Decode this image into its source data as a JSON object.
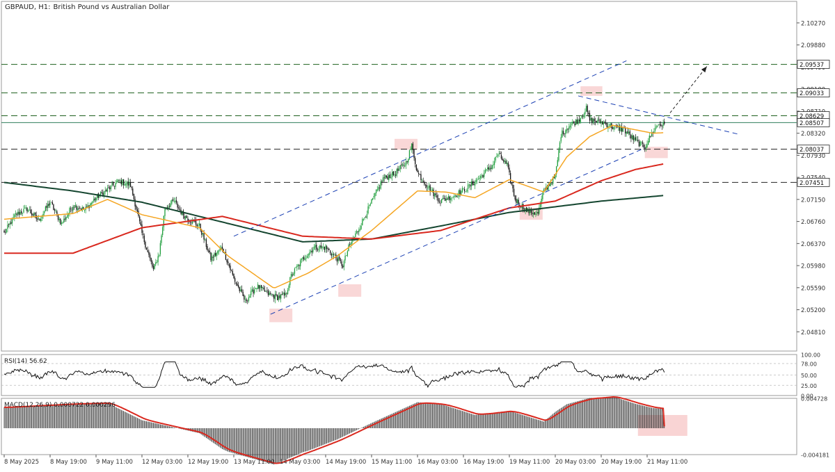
{
  "header": {
    "symbol": "GBPAUD, H1:",
    "description": "British Pound vs Australian Dollar"
  },
  "price_axis": {
    "ticks": [
      "2.10270",
      "2.09880",
      "2.09490",
      "2.09100",
      "2.08710",
      "2.08320",
      "2.07930",
      "2.07540",
      "2.07150",
      "2.06760",
      "2.06370",
      "2.05980",
      "2.05590",
      "2.05200",
      "2.04810"
    ],
    "range": [
      2.0447,
      2.1065
    ]
  },
  "price_levels": [
    {
      "label": "2.09537",
      "value": 2.09537,
      "style": "dashed",
      "color": "#1d5f1d"
    },
    {
      "label": "2.09033",
      "value": 2.09033,
      "style": "dashed",
      "color": "#1d5f1d"
    },
    {
      "label": "2.08629",
      "value": 2.08629,
      "style": "dashed",
      "color": "#1d5f1d"
    },
    {
      "label": "2.08507",
      "value": 2.08507,
      "style": "solid",
      "color": "#2e7d5b"
    },
    {
      "label": "2.08037",
      "value": 2.08037,
      "style": "dashed",
      "color": "#222222"
    },
    {
      "label": "2.07451",
      "value": 2.07451,
      "style": "dashed",
      "color": "#222222"
    }
  ],
  "time_axis": {
    "labels": [
      "8 May 2025",
      "8 May 19:00",
      "9 May 11:00",
      "12 May 03:00",
      "12 May 19:00",
      "13 May 11:00",
      "14 May 03:00",
      "14 May 19:00",
      "15 May 11:00",
      "16 May 03:00",
      "16 May 19:00",
      "19 May 11:00",
      "20 May 03:00",
      "20 May 19:00",
      "21 May 11:00"
    ]
  },
  "rsi": {
    "label": "RSI(14) 56.62",
    "period": 14,
    "current": 56.62,
    "range": [
      0,
      100
    ],
    "levels": [
      "78.00",
      "50.00",
      "25.00"
    ],
    "axis_ticks": [
      "100.00",
      "0.00"
    ]
  },
  "macd": {
    "label": "MACD(12,26,9) 0.000722 0.000296",
    "params": "12,26,9",
    "main": 0.000722,
    "signal": 0.000296,
    "axis_ticks": [
      "0.004728",
      "-0.004181"
    ]
  },
  "chart_data": {
    "type": "candlestick",
    "symbol": "GBPAUD",
    "timeframe": "H1",
    "series_anchors": {
      "close": [
        [
          0,
          2.0655
        ],
        [
          10,
          2.0688
        ],
        [
          20,
          2.0698
        ],
        [
          30,
          2.0678
        ],
        [
          40,
          2.071
        ],
        [
          50,
          2.0672
        ],
        [
          60,
          2.0705
        ],
        [
          70,
          2.0696
        ],
        [
          80,
          2.0718
        ],
        [
          90,
          2.0732
        ],
        [
          100,
          2.0748
        ],
        [
          110,
          2.074
        ],
        [
          115,
          2.07
        ],
        [
          120,
          2.0655
        ],
        [
          125,
          2.0622
        ],
        [
          130,
          2.059
        ],
        [
          135,
          2.062
        ],
        [
          140,
          2.07
        ],
        [
          148,
          2.0712
        ],
        [
          155,
          2.069
        ],
        [
          160,
          2.0682
        ],
        [
          170,
          2.0668
        ],
        [
          175,
          2.064
        ],
        [
          180,
          2.061
        ],
        [
          190,
          2.063
        ],
        [
          200,
          2.0575
        ],
        [
          210,
          2.0535
        ],
        [
          220,
          2.0562
        ],
        [
          230,
          2.0548
        ],
        [
          238,
          2.0542
        ],
        [
          245,
          2.0545
        ],
        [
          250,
          2.058
        ],
        [
          260,
          2.061
        ],
        [
          270,
          2.063
        ],
        [
          280,
          2.063
        ],
        [
          290,
          2.061
        ],
        [
          295,
          2.0598
        ],
        [
          300,
          2.063
        ],
        [
          310,
          2.0668
        ],
        [
          320,
          2.071
        ],
        [
          330,
          2.0752
        ],
        [
          340,
          2.076
        ],
        [
          350,
          2.078
        ],
        [
          355,
          2.081
        ],
        [
          360,
          2.0762
        ],
        [
          370,
          2.0735
        ],
        [
          380,
          2.0712
        ],
        [
          395,
          2.0725
        ],
        [
          405,
          2.0738
        ],
        [
          415,
          2.0755
        ],
        [
          425,
          2.0775
        ],
        [
          430,
          2.0795
        ],
        [
          438,
          2.0775
        ],
        [
          445,
          2.0715
        ],
        [
          455,
          2.0695
        ],
        [
          465,
          2.069
        ],
        [
          470,
          2.073
        ],
        [
          480,
          2.0755
        ],
        [
          485,
          2.083
        ],
        [
          492,
          2.0845
        ],
        [
          500,
          2.0855
        ],
        [
          507,
          2.0875
        ],
        [
          510,
          2.0855
        ],
        [
          520,
          2.0852
        ],
        [
          530,
          2.0843
        ],
        [
          540,
          2.0838
        ],
        [
          550,
          2.0818
        ],
        [
          558,
          2.0808
        ],
        [
          565,
          2.0835
        ],
        [
          570,
          2.0848
        ],
        [
          575,
          2.0846
        ]
      ],
      "ma20": [
        [
          0,
          2.068
        ],
        [
          60,
          2.069
        ],
        [
          90,
          2.0715
        ],
        [
          120,
          2.0688
        ],
        [
          170,
          2.0665
        ],
        [
          195,
          2.0615
        ],
        [
          235,
          2.0558
        ],
        [
          265,
          2.0585
        ],
        [
          290,
          2.0615
        ],
        [
          320,
          2.066
        ],
        [
          360,
          2.073
        ],
        [
          385,
          2.0728
        ],
        [
          410,
          2.0718
        ],
        [
          440,
          2.075
        ],
        [
          470,
          2.0728
        ],
        [
          490,
          2.079
        ],
        [
          510,
          2.0826
        ],
        [
          530,
          2.0846
        ],
        [
          555,
          2.0836
        ],
        [
          565,
          2.0832
        ],
        [
          575,
          2.0833
        ]
      ],
      "ma100": [
        [
          0,
          2.062
        ],
        [
          60,
          2.062
        ],
        [
          120,
          2.0665
        ],
        [
          190,
          2.0685
        ],
        [
          260,
          2.065
        ],
        [
          320,
          2.0645
        ],
        [
          380,
          2.066
        ],
        [
          440,
          2.07
        ],
        [
          480,
          2.0712
        ],
        [
          520,
          2.0748
        ],
        [
          550,
          2.0768
        ],
        [
          575,
          2.0778
        ]
      ],
      "ma200": [
        [
          0,
          2.0745
        ],
        [
          60,
          2.073
        ],
        [
          120,
          2.071
        ],
        [
          190,
          2.0675
        ],
        [
          260,
          2.064
        ],
        [
          320,
          2.0645
        ],
        [
          380,
          2.0668
        ],
        [
          440,
          2.0692
        ],
        [
          480,
          2.0702
        ],
        [
          520,
          2.0712
        ],
        [
          575,
          2.0722
        ]
      ]
    },
    "indicators": [
      {
        "name": "MA",
        "color": "#f5a623"
      },
      {
        "name": "MA",
        "color": "#d9281e"
      },
      {
        "name": "MA",
        "color": "#14452f"
      }
    ],
    "channel_lines": [
      {
        "from": [
          232,
          2.0512
        ],
        "to": [
          558,
          2.0806
        ],
        "style": "dashed",
        "color": "#1a3fb3"
      },
      {
        "from": [
          200,
          2.065
        ],
        "to": [
          542,
          2.096
        ],
        "style": "dashed",
        "color": "#1a3fb3"
      },
      {
        "from": [
          500,
          2.0898
        ],
        "to": [
          640,
          2.083
        ],
        "style": "dashed",
        "color": "#1a3fb3"
      }
    ],
    "projection_arrow": {
      "from": [
        580,
        2.0868
      ],
      "to": [
        612,
        2.095
      ],
      "style": "dashed",
      "color": "#222222"
    },
    "highlight_zones": [
      {
        "x": [
          231,
          251
        ],
        "y": [
          2.0498,
          2.0522
        ]
      },
      {
        "x": [
          291,
          311
        ],
        "y": [
          2.0543,
          2.0565
        ]
      },
      {
        "x": [
          340,
          360
        ],
        "y": [
          2.0803,
          2.0822
        ]
      },
      {
        "x": [
          449,
          469
        ],
        "y": [
          2.0679,
          2.07
        ]
      },
      {
        "x": [
          502,
          521
        ],
        "y": [
          2.0898,
          2.0915
        ]
      },
      {
        "x": [
          558,
          578
        ],
        "y": [
          2.0788,
          2.0808
        ]
      },
      {
        "pane": "macd",
        "x": [
          552,
          595
        ]
      }
    ]
  }
}
